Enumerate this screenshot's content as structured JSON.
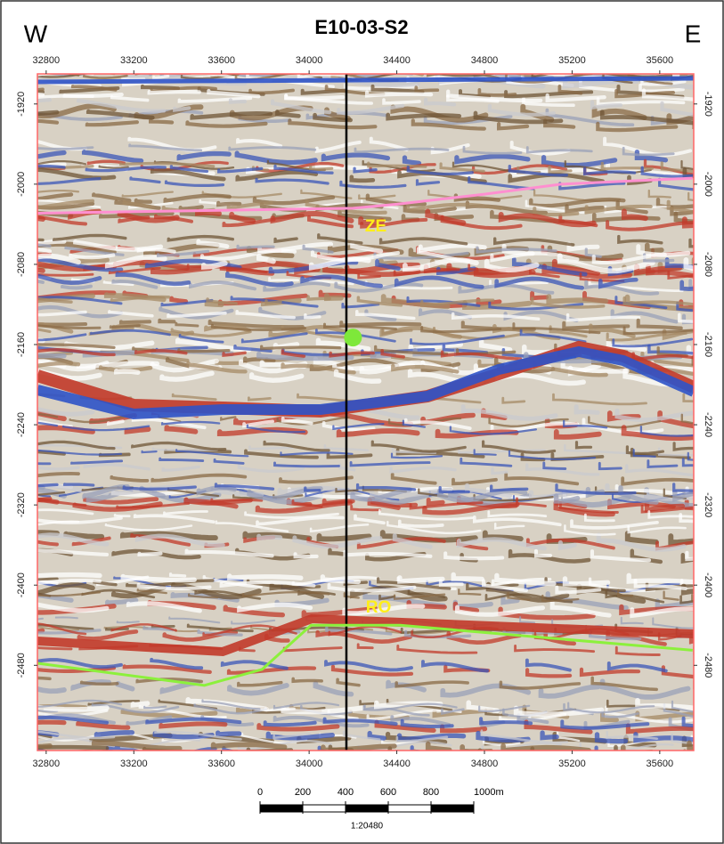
{
  "chart_data": {
    "type": "line",
    "title": "E10-03-S2",
    "left_label": "W",
    "right_label": "E",
    "xlim": [
      32760,
      35755
    ],
    "ylim": [
      -2565,
      -1890
    ],
    "xticks": [
      32800,
      33200,
      33600,
      34000,
      34400,
      34800,
      35200,
      35600
    ],
    "yticks": [
      -1920,
      -2000,
      -2080,
      -2160,
      -2240,
      -2320,
      -2400,
      -2480
    ],
    "series": [
      {
        "name": "ZE",
        "color": "#ff8fd0",
        "x": [
          32760,
          34200,
          34400,
          34800,
          35150,
          35750
        ],
        "values": [
          -2029,
          -2024,
          -2020,
          -2010,
          -2000,
          -1994
        ]
      },
      {
        "name": "RO",
        "color": "#8cf03c",
        "x": [
          32760,
          33522,
          33786,
          34009,
          34415,
          35750
        ],
        "values": [
          -2478,
          -2500,
          -2484,
          -2440,
          -2440,
          -2465
        ]
      }
    ],
    "well": {
      "x": 34170,
      "color": "#000000"
    },
    "marker": {
      "x": 34200,
      "y": -2153,
      "color": "#7ee83a"
    },
    "scale_bar": {
      "ticks": [
        0,
        200,
        400,
        600,
        800,
        {
          "value": 1000,
          "label": "1000m"
        }
      ],
      "ratio": "1:20480"
    }
  }
}
